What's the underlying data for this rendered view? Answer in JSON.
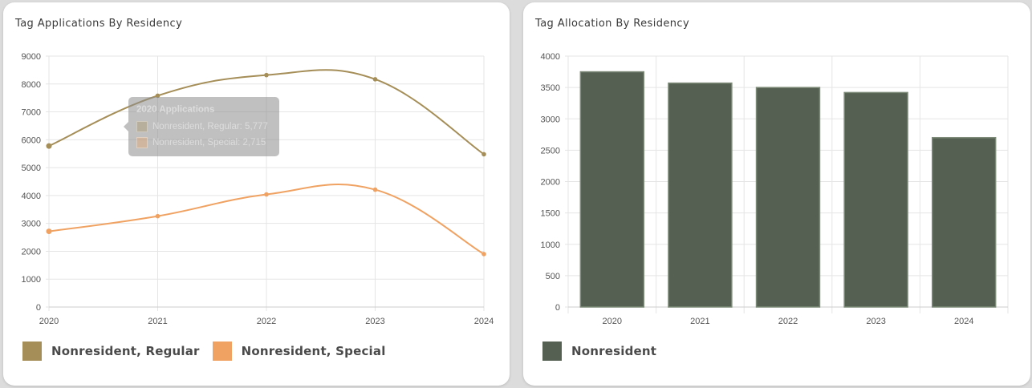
{
  "colors": {
    "regular": "#a58e57",
    "special": "#f0a262",
    "nonresident": "#556052",
    "grid": "#e5e5e5",
    "axis": "#cccccc"
  },
  "left_card": {
    "title": "Tag Applications By Residency",
    "legend": [
      {
        "label": "Nonresident, Regular",
        "color": "#a58e57"
      },
      {
        "label": "Nonresident, Special",
        "color": "#f0a262"
      }
    ],
    "tooltip": {
      "title": "2020 Applications",
      "rows": [
        {
          "text": "Nonresident, Regular: 5,777",
          "color": "#a58e57"
        },
        {
          "text": "Nonresident, Special: 2,715",
          "color": "#f0a262"
        }
      ]
    }
  },
  "right_card": {
    "title": "Tag Allocation By Residency",
    "legend": [
      {
        "label": "Nonresident",
        "color": "#556052"
      }
    ]
  },
  "chart_data": [
    {
      "type": "line",
      "title": "Tag Applications By Residency",
      "x": [
        "2020",
        "2021",
        "2022",
        "2023",
        "2024"
      ],
      "ylim": [
        0,
        9000
      ],
      "yticks": [
        0,
        1000,
        2000,
        3000,
        4000,
        5000,
        6000,
        7000,
        8000,
        9000
      ],
      "grid": true,
      "legend_position": "bottom-left",
      "series": [
        {
          "name": "Nonresident, Regular",
          "color": "#a58e57",
          "values": [
            5777,
            7580,
            8320,
            8170,
            5480
          ]
        },
        {
          "name": "Nonresident, Special",
          "color": "#f0a262",
          "values": [
            2715,
            3260,
            4040,
            4210,
            1900
          ]
        }
      ]
    },
    {
      "type": "bar",
      "title": "Tag Allocation By Residency",
      "categories": [
        "2020",
        "2021",
        "2022",
        "2023",
        "2024"
      ],
      "ylim": [
        0,
        4000
      ],
      "yticks": [
        0,
        500,
        1000,
        1500,
        2000,
        2500,
        3000,
        3500,
        4000
      ],
      "grid": true,
      "legend_position": "bottom-left",
      "series": [
        {
          "name": "Nonresident",
          "color": "#556052",
          "values": [
            3750,
            3570,
            3500,
            3420,
            2700
          ]
        }
      ]
    }
  ]
}
